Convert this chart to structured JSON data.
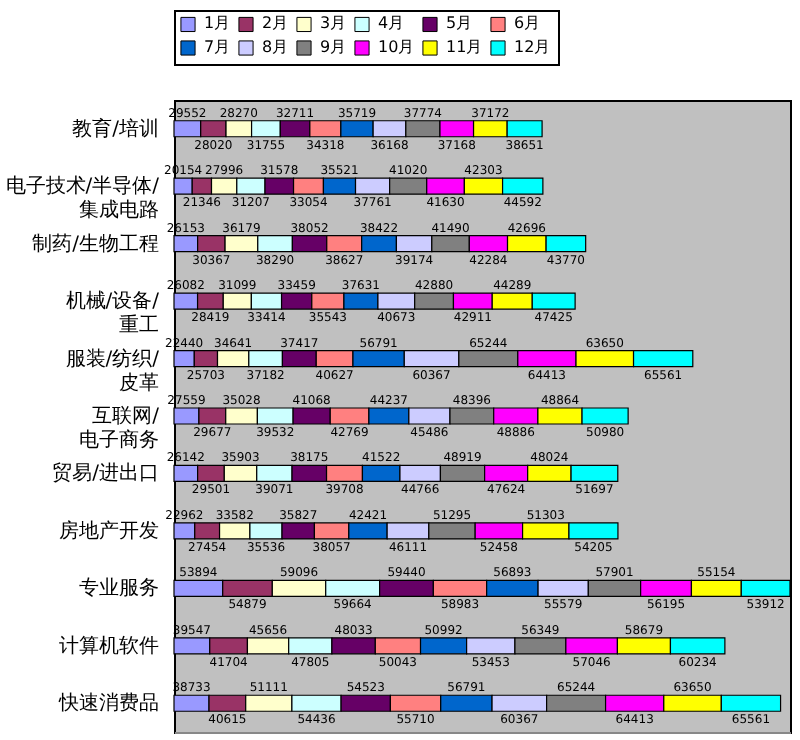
{
  "chart_data": {
    "type": "bar",
    "orientation": "horizontal",
    "stacked": true,
    "data_labels": true,
    "legend": "top",
    "tick_labels": "y",
    "categories": [
      "教育/培训",
      "电子技术/半导体/集成电路",
      "制药/生物工程",
      "机械/设备/重工",
      "服装/纺织/皮革",
      "互联网/电子商务",
      "贸易/进出口",
      "房地产开发",
      "专业服务",
      "计算机软件",
      "快速消费品"
    ],
    "series": [
      {
        "name": "1月",
        "color": "#9999ff",
        "values": [
          29552,
          20154,
          26153,
          26082,
          22440,
          27559,
          26142,
          22962,
          53894,
          39547,
          38733
        ]
      },
      {
        "name": "2月",
        "color": "#993366",
        "values": [
          28020,
          21346,
          30367,
          28419,
          25703,
          29677,
          29501,
          27454,
          54879,
          41704,
          40615
        ]
      },
      {
        "name": "3月",
        "color": "#ffffcc",
        "values": [
          28270,
          27996,
          36179,
          31099,
          34641,
          35028,
          35903,
          33582,
          59096,
          45656,
          51111
        ]
      },
      {
        "name": "4月",
        "color": "#ccffff",
        "values": [
          31755,
          31207,
          38290,
          33414,
          37182,
          39532,
          39071,
          35536,
          59664,
          47805,
          54436
        ]
      },
      {
        "name": "5月",
        "color": "#660066",
        "values": [
          32711,
          31578,
          38052,
          33459,
          37417,
          41068,
          38175,
          35827,
          59440,
          48033,
          54523
        ]
      },
      {
        "name": "6月",
        "color": "#ff8080",
        "values": [
          34318,
          33054,
          38627,
          35543,
          40627,
          42769,
          39708,
          38057,
          58983,
          50043,
          55710
        ]
      },
      {
        "name": "7月",
        "color": "#0066cc",
        "values": [
          35719,
          35521,
          38422,
          37631,
          56791,
          44237,
          41522,
          42421,
          56893,
          50992,
          56791
        ]
      },
      {
        "name": "8月",
        "color": "#ccccff",
        "values": [
          36168,
          37761,
          39174,
          40673,
          60367,
          45486,
          44766,
          46111,
          55579,
          53453,
          60367
        ]
      },
      {
        "name": "9月",
        "color": "#808080",
        "values": [
          37774,
          41020,
          41490,
          42880,
          65244,
          48396,
          48919,
          51295,
          57901,
          56349,
          65244
        ]
      },
      {
        "name": "10月",
        "color": "#ff00ff",
        "values": [
          37168,
          41630,
          42284,
          42911,
          64413,
          48886,
          47624,
          52458,
          56195,
          57046,
          64413
        ]
      },
      {
        "name": "11月",
        "color": "#ffff00",
        "values": [
          37172,
          42303,
          42696,
          44289,
          63650,
          48864,
          48024,
          51303,
          55154,
          58679,
          63650
        ]
      },
      {
        "name": "12月",
        "color": "#00ffff",
        "values": [
          38651,
          44592,
          43770,
          47425,
          65561,
          50980,
          51697,
          54205,
          53912,
          60234,
          65561
        ]
      }
    ]
  }
}
